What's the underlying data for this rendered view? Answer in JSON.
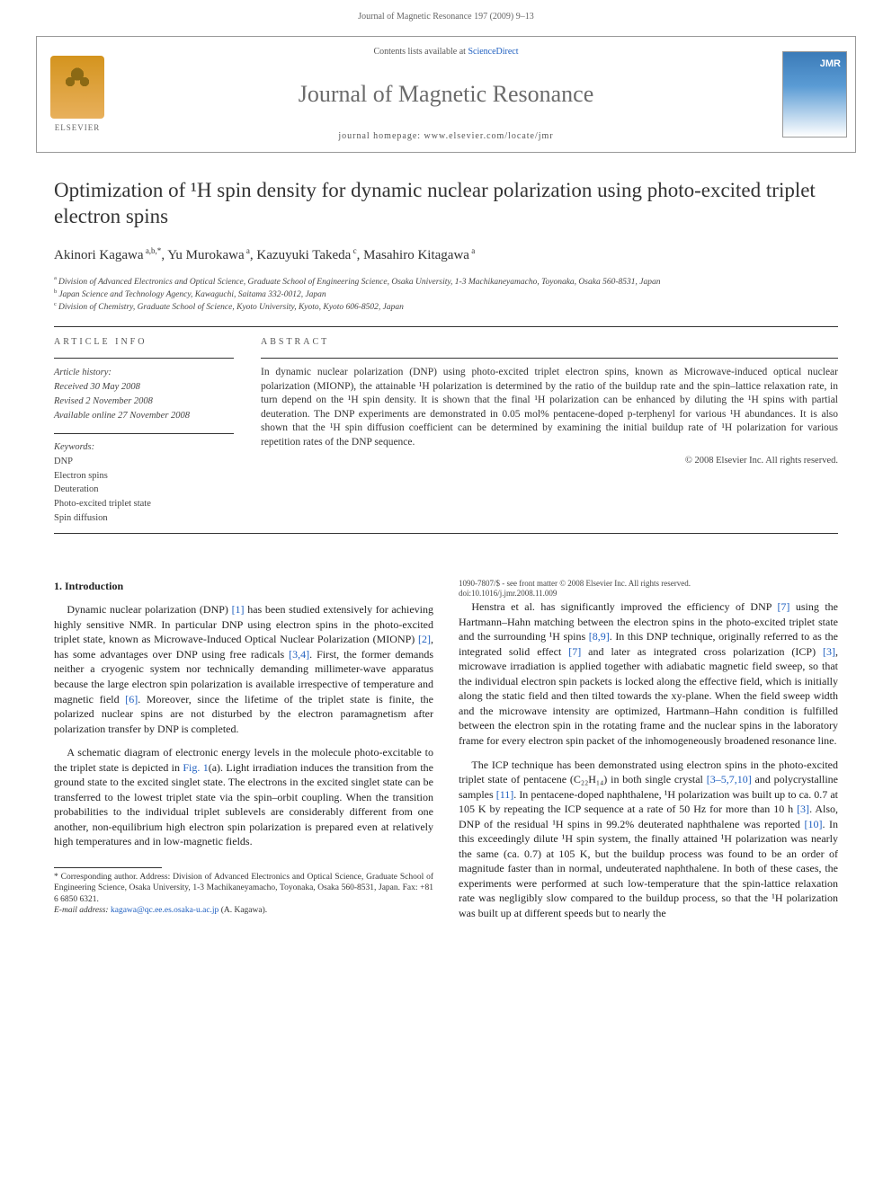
{
  "header": {
    "journal_ref": "Journal of Magnetic Resonance 197 (2009) 9–13"
  },
  "banner": {
    "contents_prefix": "Contents lists available at ",
    "contents_link": "ScienceDirect",
    "journal_name": "Journal of Magnetic Resonance",
    "homepage_prefix": "journal homepage: ",
    "homepage_url": "www.elsevier.com/locate/jmr",
    "publisher": "ELSEVIER",
    "cover_label": "JMR"
  },
  "article": {
    "title": "Optimization of ¹H spin density for dynamic nuclear polarization using photo-excited triplet electron spins",
    "authors_html": "Akinori Kagawa <sup>a,b,*</sup>, Yu Murokawa <sup>a</sup>, Kazuyuki Takeda <sup>c</sup>, Masahiro Kitagawa <sup>a</sup>",
    "affiliations": [
      {
        "key": "a",
        "text": "Division of Advanced Electronics and Optical Science, Graduate School of Engineering Science, Osaka University, 1-3 Machikaneyamacho, Toyonaka, Osaka 560-8531, Japan"
      },
      {
        "key": "b",
        "text": "Japan Science and Technology Agency, Kawaguchi, Saitama 332-0012, Japan"
      },
      {
        "key": "c",
        "text": "Division of Chemistry, Graduate School of Science, Kyoto University, Kyoto, Kyoto 606-8502, Japan"
      }
    ]
  },
  "info": {
    "label": "ARTICLE INFO",
    "history_label": "Article history:",
    "received": "Received 30 May 2008",
    "revised": "Revised 2 November 2008",
    "online": "Available online 27 November 2008",
    "keywords_label": "Keywords:",
    "keywords": [
      "DNP",
      "Electron spins",
      "Deuteration",
      "Photo-excited triplet state",
      "Spin diffusion"
    ]
  },
  "abstract": {
    "label": "ABSTRACT",
    "text": "In dynamic nuclear polarization (DNP) using photo-excited triplet electron spins, known as Microwave-induced optical nuclear polarization (MIONP), the attainable ¹H polarization is determined by the ratio of the buildup rate and the spin–lattice relaxation rate, in turn depend on the ¹H spin density. It is shown that the final ¹H polarization can be enhanced by diluting the ¹H spins with partial deuteration. The DNP experiments are demonstrated in 0.05 mol% pentacene-doped p-terphenyl for various ¹H abundances. It is also shown that the ¹H spin diffusion coefficient can be determined by examining the initial buildup rate of ¹H polarization for various repetition rates of the DNP sequence.",
    "copyright": "© 2008 Elsevier Inc. All rights reserved."
  },
  "body": {
    "section_heading": "1. Introduction",
    "p1": "Dynamic nuclear polarization (DNP) [1] has been studied extensively for achieving highly sensitive NMR. In particular DNP using electron spins in the photo-excited triplet state, known as Microwave-Induced Optical Nuclear Polarization (MIONP) [2], has some advantages over DNP using free radicals [3,4]. First, the former demands neither a cryogenic system nor technically demanding millimeter-wave apparatus because the large electron spin polarization is available irrespective of temperature and magnetic field [6]. Moreover, since the lifetime of the triplet state is finite, the polarized nuclear spins are not disturbed by the electron paramagnetism after polarization transfer by DNP is completed.",
    "p2": "A schematic diagram of electronic energy levels in the molecule photo-excitable to the triplet state is depicted in Fig. 1(a). Light irradiation induces the transition from the ground state to the excited singlet state. The electrons in the excited singlet state can be transferred to the lowest triplet state via the spin–orbit coupling. When the transition probabilities to the individual triplet sublevels are considerably different from one another, non-equilibrium high electron spin polarization is prepared even at relatively high temperatures and in low-magnetic fields.",
    "p3": "Henstra et al. has significantly improved the efficiency of DNP [7] using the Hartmann–Hahn matching between the electron spins in the photo-excited triplet state and the surrounding ¹H spins [8,9]. In this DNP technique, originally referred to as the integrated solid effect [7] and later as integrated cross polarization (ICP) [3], microwave irradiation is applied together with adiabatic magnetic field sweep, so that the individual electron spin packets is locked along the effective field, which is initially along the static field and then tilted towards the xy-plane. When the field sweep width and the microwave intensity are optimized, Hartmann–Hahn condition is fulfilled between the electron spin in the rotating frame and the nuclear spins in the laboratory frame for every electron spin packet of the inhomogeneously broadened resonance line.",
    "p4": "The ICP technique has been demonstrated using electron spins in the photo-excited triplet state of pentacene (C₂₂H₁₄) in both single crystal [3–5,7,10] and polycrystalline samples [11]. In pentacene-doped naphthalene, ¹H polarization was built up to ca. 0.7 at 105 K by repeating the ICP sequence at a rate of 50 Hz for more than 10 h [3]. Also, DNP of the residual ¹H spins in 99.2% deuterated naphthalene was reported [10]. In this exceedingly dilute ¹H spin system, the finally attained ¹H polarization was nearly the same (ca. 0.7) at 105 K, but the buildup process was found to be an order of magnitude faster than in normal, undeuterated naphthalene. In both of these cases, the experiments were performed at such low-temperature that the spin-lattice relaxation rate was negligibly slow compared to the buildup process, so that the ¹H polarization was built up at different speeds but to nearly the",
    "ref_links": [
      "[1]",
      "[2]",
      "[3,4]",
      "[6]",
      "Fig. 1",
      "[7]",
      "[8,9]",
      "[3]",
      "[3–5,7,10]",
      "[11]",
      "[10]"
    ]
  },
  "footnote": {
    "marker": "*",
    "text": "Corresponding author. Address: Division of Advanced Electronics and Optical Science, Graduate School of Engineering Science, Osaka University, 1-3 Machikaneyamacho, Toyonaka, Osaka 560-8531, Japan. Fax: +81 6 6850 6321.",
    "email_label": "E-mail address:",
    "email": "kagawa@qc.ee.es.osaka-u.ac.jp",
    "email_name": "(A. Kagawa)."
  },
  "footer": {
    "line1": "1090-7807/$ - see front matter © 2008 Elsevier Inc. All rights reserved.",
    "line2": "doi:10.1016/j.jmr.2008.11.009"
  },
  "colors": {
    "link": "#2060c0",
    "text": "#333333",
    "muted": "#666666",
    "rule": "#333333",
    "banner_border": "#999999",
    "elsevier_bg": "#e8b05c",
    "jmr_blue": "#3b7bb8"
  },
  "typography": {
    "title_fontsize": 23,
    "journal_name_fontsize": 26,
    "body_fontsize": 12,
    "abstract_fontsize": 11.5,
    "footnote_fontsize": 9.5
  }
}
